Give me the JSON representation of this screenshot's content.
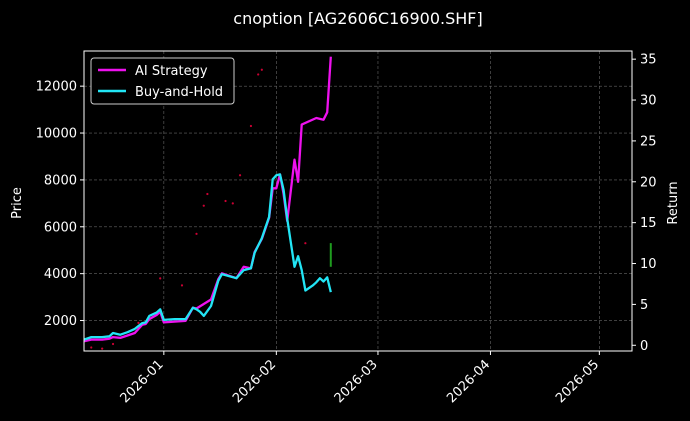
{
  "chart_data": {
    "type": "line",
    "title": "cnoption [AG2606C16900.SHF]",
    "ylabel_left": "Price",
    "ylabel_right": "Return",
    "x_ticks": [
      "2026-01",
      "2026-02",
      "2026-03",
      "2026-04",
      "2026-05"
    ],
    "y_ticks_left": [
      2000,
      4000,
      6000,
      8000,
      10000,
      12000
    ],
    "y_ticks_right": [
      0,
      5,
      10,
      15,
      20,
      25,
      30,
      35
    ],
    "ylim_left": [
      700,
      13500
    ],
    "ylim_right": [
      -0.7,
      36.0
    ],
    "xlim": [
      "2025-12-10",
      "2026-05-10"
    ],
    "grid": true,
    "legend_position": "top-left",
    "colors": {
      "background": "#000000",
      "ai_strategy": "#ee11ee",
      "buy_and_hold": "#22e5f5",
      "price_dots": "#cc0033",
      "volume_bar": "#1f9c1f"
    },
    "series": [
      {
        "name": "AI Strategy",
        "axis": "right",
        "points": [
          [
            "2025-12-10",
            0.5
          ],
          [
            "2025-12-12",
            0.7
          ],
          [
            "2025-12-15",
            0.7
          ],
          [
            "2025-12-17",
            0.8
          ],
          [
            "2025-12-18",
            1.0
          ],
          [
            "2025-12-20",
            0.9
          ],
          [
            "2025-12-22",
            1.2
          ],
          [
            "2025-12-24",
            1.5
          ],
          [
            "2025-12-26",
            2.5
          ],
          [
            "2025-12-27",
            2.6
          ],
          [
            "2025-12-28",
            3.2
          ],
          [
            "2025-12-30",
            3.7
          ],
          [
            "2025-12-31",
            4.1
          ],
          [
            "2026-01-01",
            2.8
          ],
          [
            "2026-01-04",
            2.9
          ],
          [
            "2026-01-07",
            3.0
          ],
          [
            "2026-01-09",
            4.6
          ],
          [
            "2026-01-10",
            4.5
          ],
          [
            "2026-01-14",
            5.6
          ],
          [
            "2026-01-16",
            8.1
          ],
          [
            "2026-01-17",
            8.8
          ],
          [
            "2026-01-21",
            8.2
          ],
          [
            "2026-01-23",
            9.6
          ],
          [
            "2026-01-25",
            9.4
          ],
          [
            "2026-01-26",
            11.4
          ],
          [
            "2026-01-28",
            13.0
          ],
          [
            "2026-01-30",
            15.6
          ],
          [
            "2026-01-31",
            19.2
          ],
          [
            "2026-02-01",
            19.2
          ],
          [
            "2026-02-02",
            20.9
          ],
          [
            "2026-02-03",
            18.5
          ],
          [
            "2026-02-04",
            15.2
          ],
          [
            "2026-02-06",
            22.7
          ],
          [
            "2026-02-07",
            20.0
          ],
          [
            "2026-02-08",
            27.0
          ],
          [
            "2026-02-12",
            27.8
          ],
          [
            "2026-02-14",
            27.6
          ],
          [
            "2026-02-15",
            28.5
          ],
          [
            "2026-02-16",
            35.3
          ]
        ]
      },
      {
        "name": "Buy-and-Hold",
        "axis": "right",
        "points": [
          [
            "2025-12-10",
            0.7
          ],
          [
            "2025-12-12",
            1.0
          ],
          [
            "2025-12-15",
            1.0
          ],
          [
            "2025-12-17",
            1.1
          ],
          [
            "2025-12-18",
            1.5
          ],
          [
            "2025-12-20",
            1.3
          ],
          [
            "2025-12-22",
            1.6
          ],
          [
            "2025-12-24",
            2.0
          ],
          [
            "2025-12-26",
            2.7
          ],
          [
            "2025-12-27",
            2.8
          ],
          [
            "2025-12-28",
            3.6
          ],
          [
            "2025-12-30",
            4.0
          ],
          [
            "2025-12-31",
            4.4
          ],
          [
            "2026-01-01",
            3.1
          ],
          [
            "2026-01-04",
            3.2
          ],
          [
            "2026-01-07",
            3.2
          ],
          [
            "2026-01-09",
            4.6
          ],
          [
            "2026-01-10",
            4.4
          ],
          [
            "2026-01-11",
            4.1
          ],
          [
            "2026-01-12",
            3.6
          ],
          [
            "2026-01-14",
            4.8
          ],
          [
            "2026-01-16",
            7.9
          ],
          [
            "2026-01-17",
            8.7
          ],
          [
            "2026-01-21",
            8.2
          ],
          [
            "2026-01-23",
            9.2
          ],
          [
            "2026-01-25",
            9.4
          ],
          [
            "2026-01-26",
            11.3
          ],
          [
            "2026-01-28",
            13.1
          ],
          [
            "2026-01-30",
            15.7
          ],
          [
            "2026-01-31",
            20.3
          ],
          [
            "2026-02-01",
            20.8
          ],
          [
            "2026-02-02",
            20.9
          ],
          [
            "2026-02-03",
            19.0
          ],
          [
            "2026-02-04",
            15.5
          ],
          [
            "2026-02-06",
            9.6
          ],
          [
            "2026-02-07",
            10.9
          ],
          [
            "2026-02-08",
            9.2
          ],
          [
            "2026-02-09",
            6.7
          ],
          [
            "2026-02-11",
            7.3
          ],
          [
            "2026-02-12",
            7.7
          ],
          [
            "2026-02-13",
            8.2
          ],
          [
            "2026-02-14",
            7.8
          ],
          [
            "2026-02-15",
            8.3
          ],
          [
            "2026-02-16",
            6.5
          ]
        ]
      }
    ],
    "price_points": [
      [
        "2025-12-12",
        850
      ],
      [
        "2025-12-15",
        800
      ],
      [
        "2025-12-18",
        1000
      ],
      [
        "2025-12-25",
        1900
      ],
      [
        "2025-12-31",
        3800
      ],
      [
        "2026-01-06",
        3500
      ],
      [
        "2026-01-10",
        5700
      ],
      [
        "2026-01-12",
        6900
      ],
      [
        "2026-01-13",
        7400
      ],
      [
        "2026-01-18",
        7100
      ],
      [
        "2026-01-20",
        7000
      ],
      [
        "2026-01-22",
        8200
      ],
      [
        "2026-01-25",
        10300
      ],
      [
        "2026-01-27",
        12500
      ],
      [
        "2026-01-28",
        12700
      ],
      [
        "2026-02-09",
        5300
      ]
    ],
    "volume_bar": {
      "date": "2026-02-16",
      "from": 9.6,
      "to": 12.5
    }
  }
}
